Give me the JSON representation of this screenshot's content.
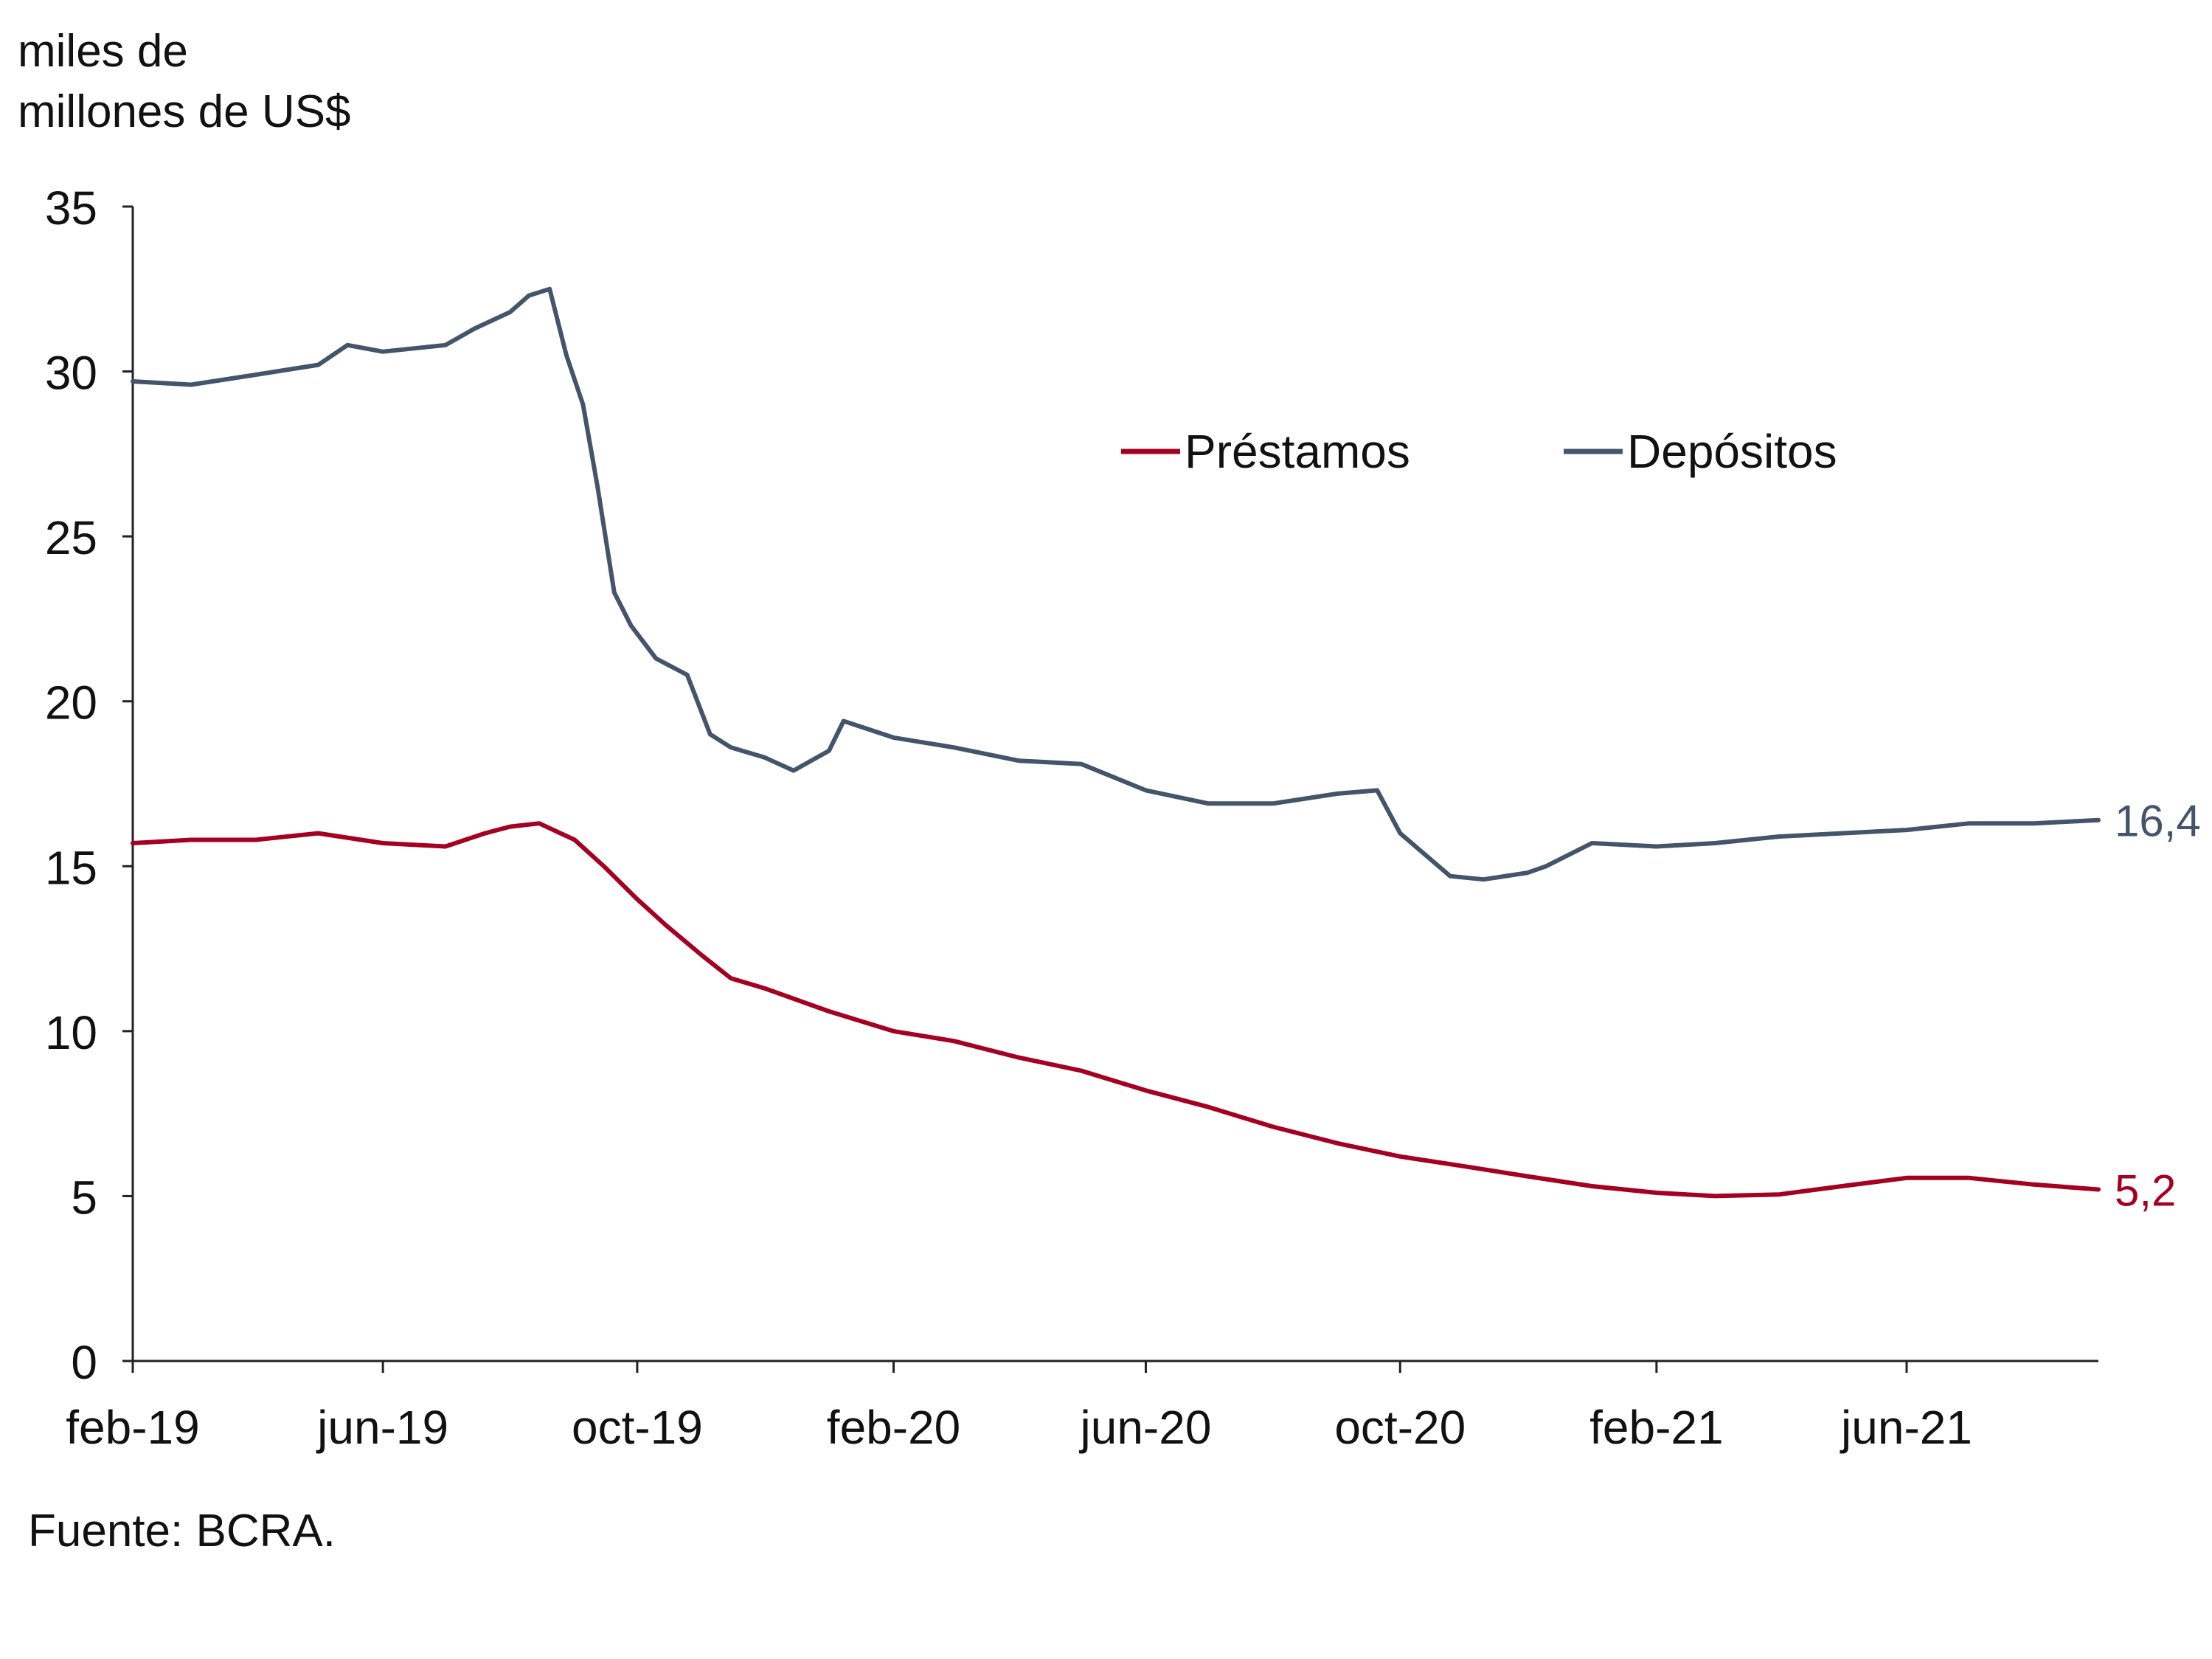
{
  "chart_data": {
    "type": "line",
    "ylabel_lines": [
      "miles de",
      "millones de US$"
    ],
    "source": "Fuente: BCRA.",
    "ylim": [
      0,
      35
    ],
    "yticks": [
      0,
      5,
      10,
      15,
      20,
      25,
      30,
      35
    ],
    "xlim": [
      "2019-02",
      "2021-09"
    ],
    "xtick_labels": [
      "feb-19",
      "jun-19",
      "oct-19",
      "feb-20",
      "jun-20",
      "oct-20",
      "feb-21",
      "jun-21"
    ],
    "legend": {
      "position": "top-center",
      "entries": [
        "Préstamos",
        "Depósitos"
      ]
    },
    "grid": false,
    "series": [
      {
        "name": "Préstamos",
        "color": "#a50021",
        "end_label": "5,2",
        "x": [
          "2019-02-01",
          "2019-03-01",
          "2019-04-01",
          "2019-05-01",
          "2019-06-01",
          "2019-07-01",
          "2019-07-20",
          "2019-08-01",
          "2019-08-15",
          "2019-09-01",
          "2019-09-15",
          "2019-10-01",
          "2019-10-15",
          "2019-11-01",
          "2019-11-15",
          "2019-12-01",
          "2020-01-01",
          "2020-02-01",
          "2020-03-01",
          "2020-04-01",
          "2020-05-01",
          "2020-06-01",
          "2020-07-01",
          "2020-08-01",
          "2020-09-01",
          "2020-10-01",
          "2020-11-01",
          "2020-12-01",
          "2021-01-01",
          "2021-02-01",
          "2021-03-01",
          "2021-04-01",
          "2021-05-01",
          "2021-06-01",
          "2021-07-01",
          "2021-08-01",
          "2021-09-01"
        ],
        "y": [
          15.7,
          15.8,
          15.8,
          16.0,
          15.7,
          15.6,
          16.0,
          16.2,
          16.3,
          15.8,
          15.0,
          14.0,
          13.2,
          12.3,
          11.6,
          11.3,
          10.6,
          10.0,
          9.7,
          9.2,
          8.8,
          8.2,
          7.7,
          7.1,
          6.6,
          6.2,
          5.9,
          5.6,
          5.3,
          5.1,
          5.0,
          5.05,
          5.3,
          5.55,
          5.55,
          5.35,
          5.2
        ]
      },
      {
        "name": "Depósitos",
        "color": "#44546a",
        "end_label": "16,4",
        "x": [
          "2019-02-01",
          "2019-03-01",
          "2019-04-01",
          "2019-05-01",
          "2019-05-15",
          "2019-06-01",
          "2019-07-01",
          "2019-07-15",
          "2019-08-01",
          "2019-08-10",
          "2019-08-20",
          "2019-08-28",
          "2019-09-05",
          "2019-09-12",
          "2019-09-20",
          "2019-09-28",
          "2019-10-10",
          "2019-10-25",
          "2019-11-05",
          "2019-11-15",
          "2019-12-01",
          "2019-12-15",
          "2020-01-01",
          "2020-01-08",
          "2020-02-01",
          "2020-03-01",
          "2020-04-01",
          "2020-05-01",
          "2020-06-01",
          "2020-07-01",
          "2020-08-01",
          "2020-09-01",
          "2020-09-20",
          "2020-10-01",
          "2020-10-25",
          "2020-11-10",
          "2020-12-01",
          "2020-12-10",
          "2021-01-01",
          "2021-02-01",
          "2021-03-01",
          "2021-04-01",
          "2021-05-01",
          "2021-06-01",
          "2021-07-01",
          "2021-08-01",
          "2021-09-01"
        ],
        "y": [
          29.7,
          29.6,
          29.9,
          30.2,
          30.8,
          30.6,
          30.8,
          31.3,
          31.8,
          32.3,
          32.5,
          30.5,
          29.0,
          26.5,
          23.3,
          22.3,
          21.3,
          20.8,
          19.0,
          18.6,
          18.3,
          17.9,
          18.5,
          19.4,
          18.9,
          18.6,
          18.2,
          18.1,
          17.3,
          16.9,
          16.9,
          17.2,
          17.3,
          16.0,
          14.7,
          14.6,
          14.8,
          15.0,
          15.7,
          15.6,
          15.7,
          15.9,
          16.0,
          16.1,
          16.3,
          16.3,
          16.4
        ]
      }
    ]
  }
}
